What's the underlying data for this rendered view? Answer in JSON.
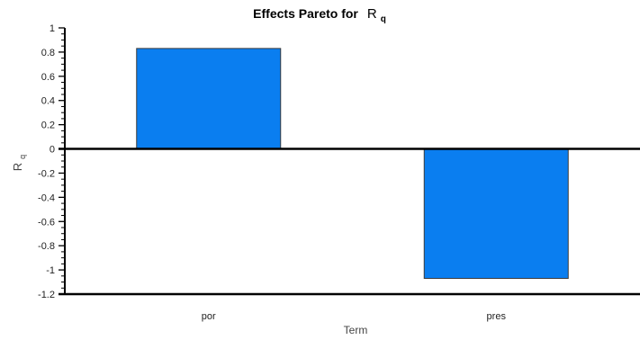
{
  "chart_data": {
    "type": "bar",
    "title": "Effects Pareto for",
    "title_symbol": "R",
    "title_subscript": "q",
    "xlabel": "Term",
    "ylabel_symbol": "R",
    "ylabel_subscript": "q",
    "categories": [
      "por",
      "pres"
    ],
    "values": [
      0.83,
      -1.07
    ],
    "ylim": [
      -1.2,
      1
    ],
    "yticks": [
      "1",
      "0.8",
      "0.6",
      "0.4",
      "0.2",
      "0",
      "-0.2",
      "-0.4",
      "-0.6",
      "-0.8",
      "-1",
      "-1.2"
    ],
    "bar_color": "#0a7ef0",
    "grid": false
  }
}
